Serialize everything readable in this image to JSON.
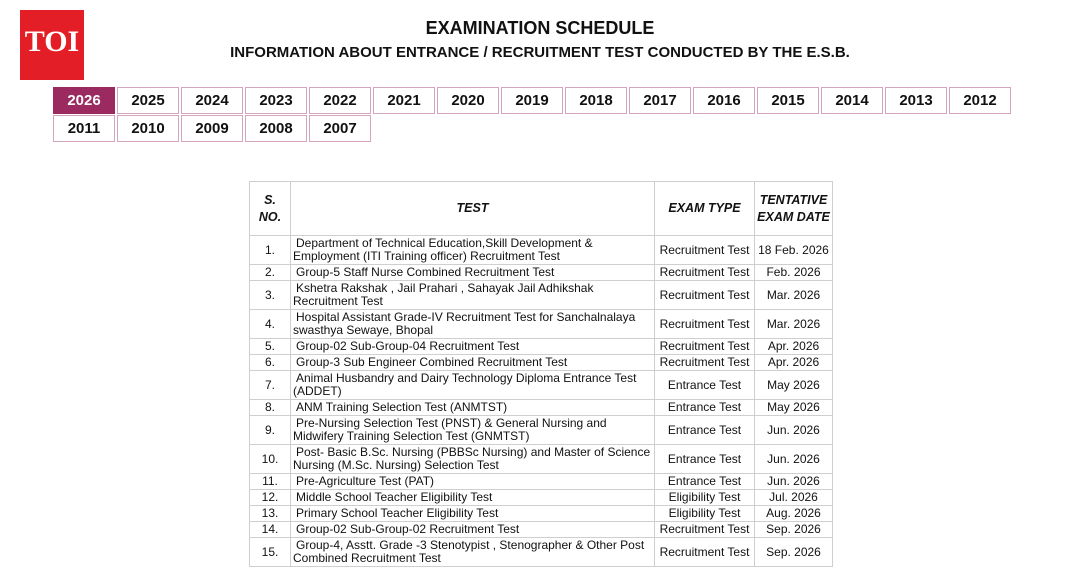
{
  "logo": "TOI",
  "header": {
    "title": "EXAMINATION SCHEDULE",
    "subtitle": "INFORMATION ABOUT ENTRANCE / RECRUITMENT TEST CONDUCTED BY THE E.S.B."
  },
  "tabs": {
    "active": 0,
    "years": [
      "2026",
      "2025",
      "2024",
      "2023",
      "2022",
      "2021",
      "2020",
      "2019",
      "2018",
      "2017",
      "2016",
      "2015",
      "2014",
      "2013",
      "2012",
      "2011",
      "2010",
      "2009",
      "2008",
      "2007"
    ]
  },
  "table": {
    "columns": [
      "S. NO.",
      "TEST",
      "EXAM TYPE",
      "TENTATIVE EXAM DATE"
    ],
    "rows": [
      [
        "1.",
        "Department of Technical Education,Skill Development & Employment (ITI Training officer) Recruitment Test",
        "Recruitment Test",
        "18 Feb. 2026"
      ],
      [
        "2.",
        "Group-5 Staff Nurse Combined Recruitment Test",
        "Recruitment Test",
        "Feb. 2026"
      ],
      [
        "3.",
        "Kshetra Rakshak , Jail Prahari , Sahayak Jail Adhikshak Recruitment Test",
        "Recruitment Test",
        "Mar. 2026"
      ],
      [
        "4.",
        "Hospital Assistant Grade-IV Recruitment Test for Sanchalnalaya swasthya Sewaye, Bhopal",
        "Recruitment Test",
        "Mar. 2026"
      ],
      [
        "5.",
        "Group-02 Sub-Group-04  Recruitment Test",
        "Recruitment Test",
        "Apr. 2026"
      ],
      [
        "6.",
        "Group-3 Sub Engineer Combined Recruitment Test",
        "Recruitment Test",
        "Apr. 2026"
      ],
      [
        "7.",
        "Animal Husbandry and Dairy Technology Diploma Entrance Test (ADDET)",
        "Entrance Test",
        "May 2026"
      ],
      [
        "8.",
        "ANM Training Selection Test (ANMTST)",
        "Entrance Test",
        "May 2026"
      ],
      [
        "9.",
        "Pre-Nursing Selection Test (PNST)  & General Nursing and Midwifery Training Selection Test (GNMTST)",
        "Entrance Test",
        "Jun. 2026"
      ],
      [
        "10.",
        "Post- Basic B.Sc. Nursing (PBBSc Nursing) and Master of Science Nursing (M.Sc. Nursing) Selection Test",
        "Entrance Test",
        "Jun. 2026"
      ],
      [
        "11.",
        "Pre-Agriculture Test (PAT)",
        "Entrance Test",
        "Jun. 2026"
      ],
      [
        "12.",
        "Middle School Teacher Eligibility Test",
        "Eligibility Test",
        "Jul. 2026"
      ],
      [
        "13.",
        "Primary School Teacher Eligibility Test",
        "Eligibility Test",
        "Aug. 2026"
      ],
      [
        "14.",
        "Group-02 Sub-Group-02  Recruitment Test",
        "Recruitment Test",
        "Sep. 2026"
      ],
      [
        "15.",
        "Group-4, Asstt. Grade -3 Stenotypist , Stenographer & Other Post Combined Recruitment Test",
        "Recruitment Test",
        "Sep. 2026"
      ]
    ]
  }
}
